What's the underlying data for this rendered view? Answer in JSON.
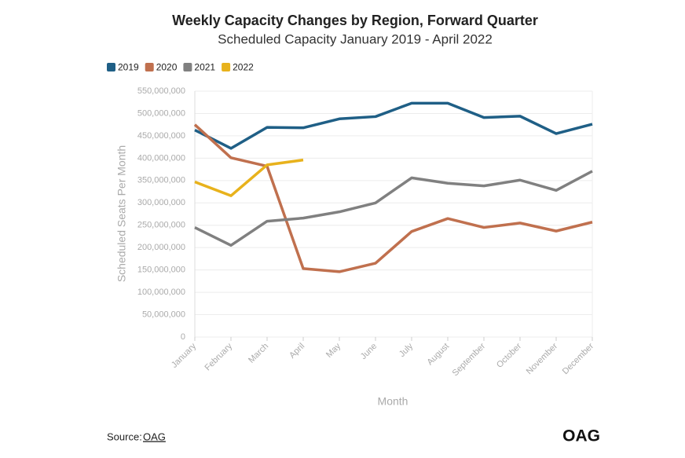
{
  "chart_data": {
    "type": "line",
    "title": "Weekly Capacity Changes by Region, Forward Quarter",
    "subtitle": "Scheduled Capacity January 2019 - April 2022",
    "x_label": "Month",
    "y_label": "Scheduled Seats Per Month",
    "categories": [
      "January",
      "February",
      "March",
      "April",
      "May",
      "June",
      "July",
      "August",
      "September",
      "October",
      "November",
      "December"
    ],
    "series": [
      {
        "name": "2019",
        "color": "#1f5f86",
        "values": [
          463000000,
          422000000,
          469000000,
          468000000,
          488000000,
          493000000,
          523000000,
          523000000,
          491000000,
          494000000,
          455000000,
          476000000
        ]
      },
      {
        "name": "2020",
        "color": "#c0704e",
        "values": [
          475000000,
          401000000,
          382000000,
          153000000,
          146000000,
          165000000,
          236000000,
          265000000,
          245000000,
          255000000,
          237000000,
          257000000
        ]
      },
      {
        "name": "2021",
        "color": "#808080",
        "values": [
          245000000,
          205000000,
          259000000,
          266000000,
          280000000,
          300000000,
          356000000,
          344000000,
          338000000,
          351000000,
          328000000,
          371000000
        ]
      },
      {
        "name": "2022",
        "color": "#e8b21c",
        "values": [
          347000000,
          316000000,
          385000000,
          396000000,
          null,
          null,
          null,
          null,
          null,
          null,
          null,
          null
        ]
      }
    ],
    "ylim": [
      0,
      550000000
    ],
    "yticks": [
      0,
      {
        "value": 50000000,
        "label": "50,000,000"
      },
      {
        "value": 100000000,
        "label": "100,000,000"
      },
      {
        "value": 150000000,
        "label": "150,000,000"
      },
      {
        "value": 200000000,
        "label": "200,000,000"
      },
      {
        "value": 250000000,
        "label": "250,000,000"
      },
      {
        "value": 300000000,
        "label": "300,000,000"
      },
      {
        "value": 350000000,
        "label": "350,000,000"
      },
      {
        "value": 400000000,
        "label": "400,000,000"
      },
      {
        "value": 450000000,
        "label": "450,000,000"
      },
      {
        "value": 500000000,
        "label": "500,000,000"
      },
      {
        "value": 550000000,
        "label": "550,000,000"
      }
    ],
    "grid": true,
    "legend": "top-left"
  },
  "footer": {
    "source": "Source:",
    "source_link": "OAG",
    "logo": "OAG"
  }
}
